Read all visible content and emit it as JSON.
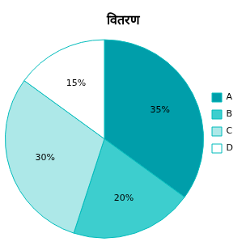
{
  "chart_data": {
    "type": "pie",
    "title": "वितरण",
    "categories": [
      "A",
      "B",
      "C",
      "D"
    ],
    "values": [
      35,
      20,
      30,
      15
    ],
    "value_labels": [
      "35%",
      "20%",
      "30%",
      "15%"
    ],
    "colors": [
      "#009EAA",
      "#3DCECE",
      "#ADE8E8",
      "#FFFFFF"
    ],
    "data_labels": true,
    "legend": "right"
  }
}
